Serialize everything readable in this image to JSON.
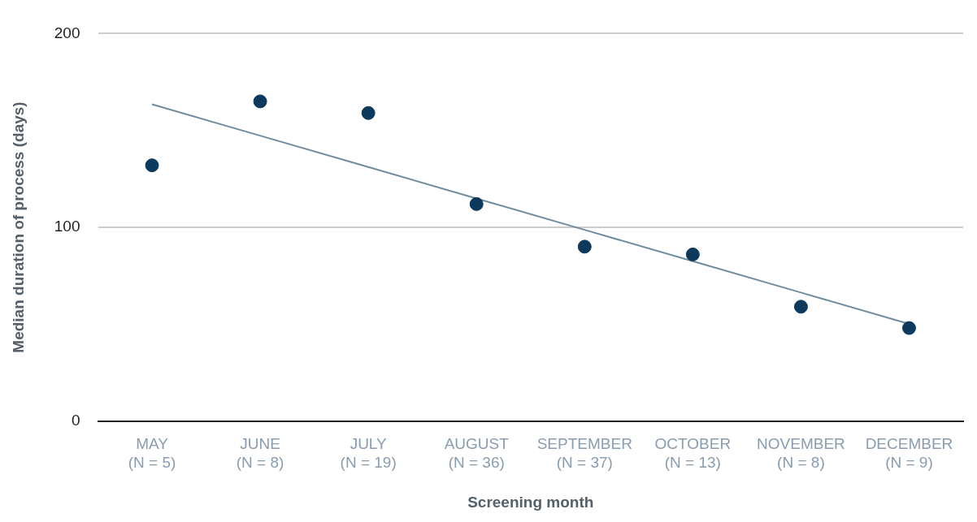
{
  "chart_data": {
    "type": "scatter",
    "xlabel": "Screening month",
    "ylabel": "Median duration of process (days)",
    "categories": [
      "MAY\n(N = 5)",
      "JUNE\n(N = 8)",
      "JULY\n(N = 19)",
      "AUGUST\n(N = 36)",
      "SEPTEMBER\n(N = 37)",
      "OCTOBER\n(N = 13)",
      "NOVEMBER\n(N = 8)",
      "DECEMBER\n(N = 9)"
    ],
    "series": [
      {
        "color": "#0d3a5c",
        "marker": "circle",
        "values": [
          132,
          165,
          159,
          112,
          90,
          86,
          59,
          48
        ]
      },
      {
        "type": "line",
        "color": "#6e8ca0",
        "marker": "none",
        "values": [
          163.5,
          147.3,
          131.1,
          114.9,
          98.7,
          82.5,
          66.3,
          50.1
        ]
      }
    ],
    "ylim": [
      0,
      200
    ],
    "yticks": [
      0,
      100,
      200
    ],
    "grid": "y",
    "legend": false
  }
}
